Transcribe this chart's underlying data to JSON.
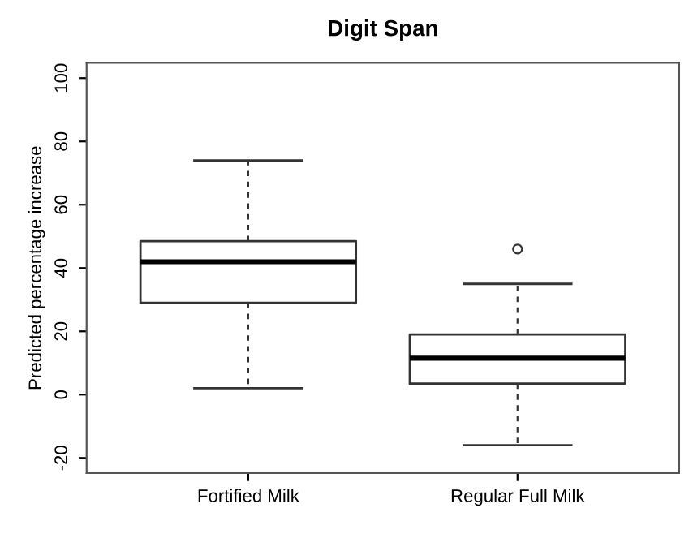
{
  "chart_data": {
    "type": "box",
    "title": "Digit Span",
    "ylabel": "Predicted percentage increase",
    "categories": [
      "Fortified Milk",
      "Regular Full Milk"
    ],
    "boxes": [
      {
        "low": 2,
        "q1": 29,
        "median": 42,
        "q3": 48.5,
        "high": 74
      },
      {
        "low": -16,
        "q1": 3.5,
        "median": 11.5,
        "q3": 19,
        "high": 35,
        "outliers": [
          46
        ]
      }
    ],
    "ylim": [
      -24.8,
      104.8
    ],
    "yticks": [
      {
        "value": -20,
        "label": "-20"
      },
      0,
      20,
      40,
      60,
      80,
      100
    ],
    "grid": false
  }
}
